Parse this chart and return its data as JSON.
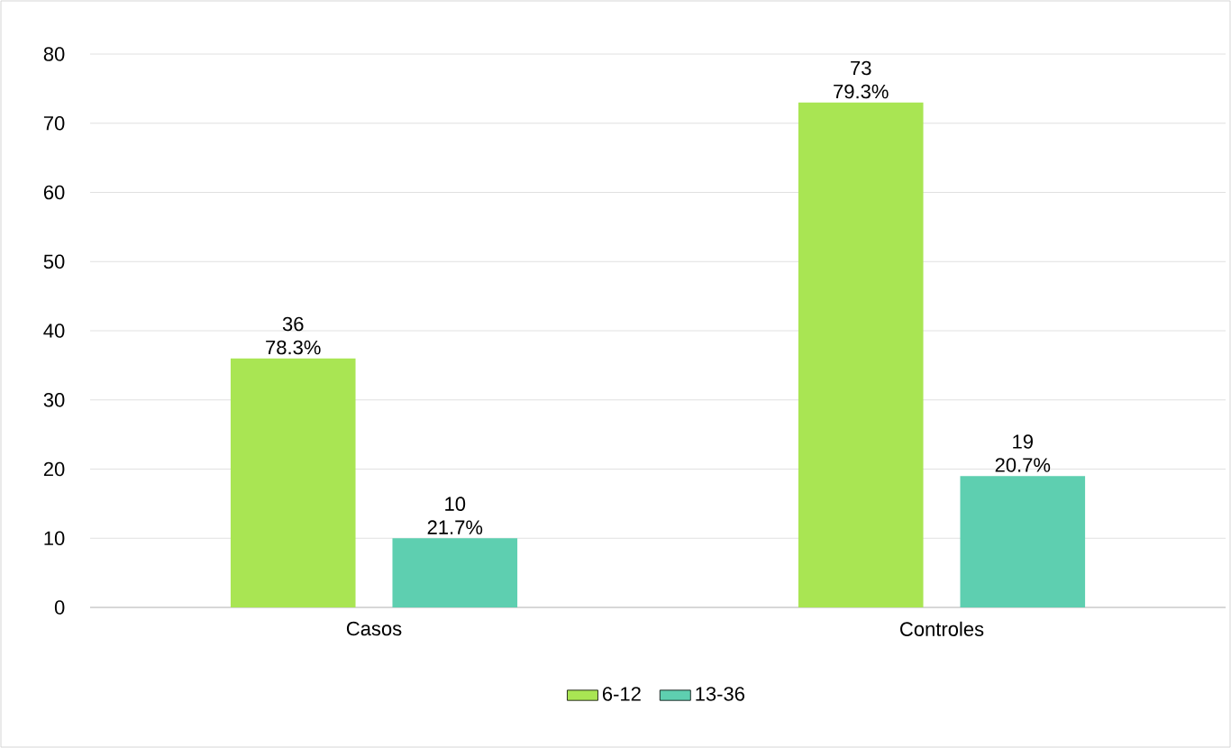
{
  "chart_data": {
    "type": "bar",
    "categories": [
      "Casos",
      "Controles"
    ],
    "series": [
      {
        "name": "6-12",
        "color": "#a9e553",
        "values": [
          36,
          73
        ],
        "value_labels": [
          "36 78.3%",
          "73 79.3%"
        ]
      },
      {
        "name": "13-36",
        "color": "#5ecfb0",
        "values": [
          10,
          19
        ],
        "value_labels": [
          "10 21.7%",
          "19 20.7%"
        ]
      }
    ],
    "ylim": [
      0,
      80
    ],
    "yticks": [
      0,
      10,
      20,
      30,
      40,
      50,
      60,
      70,
      80
    ],
    "grid": "y",
    "legend": "bottom"
  }
}
